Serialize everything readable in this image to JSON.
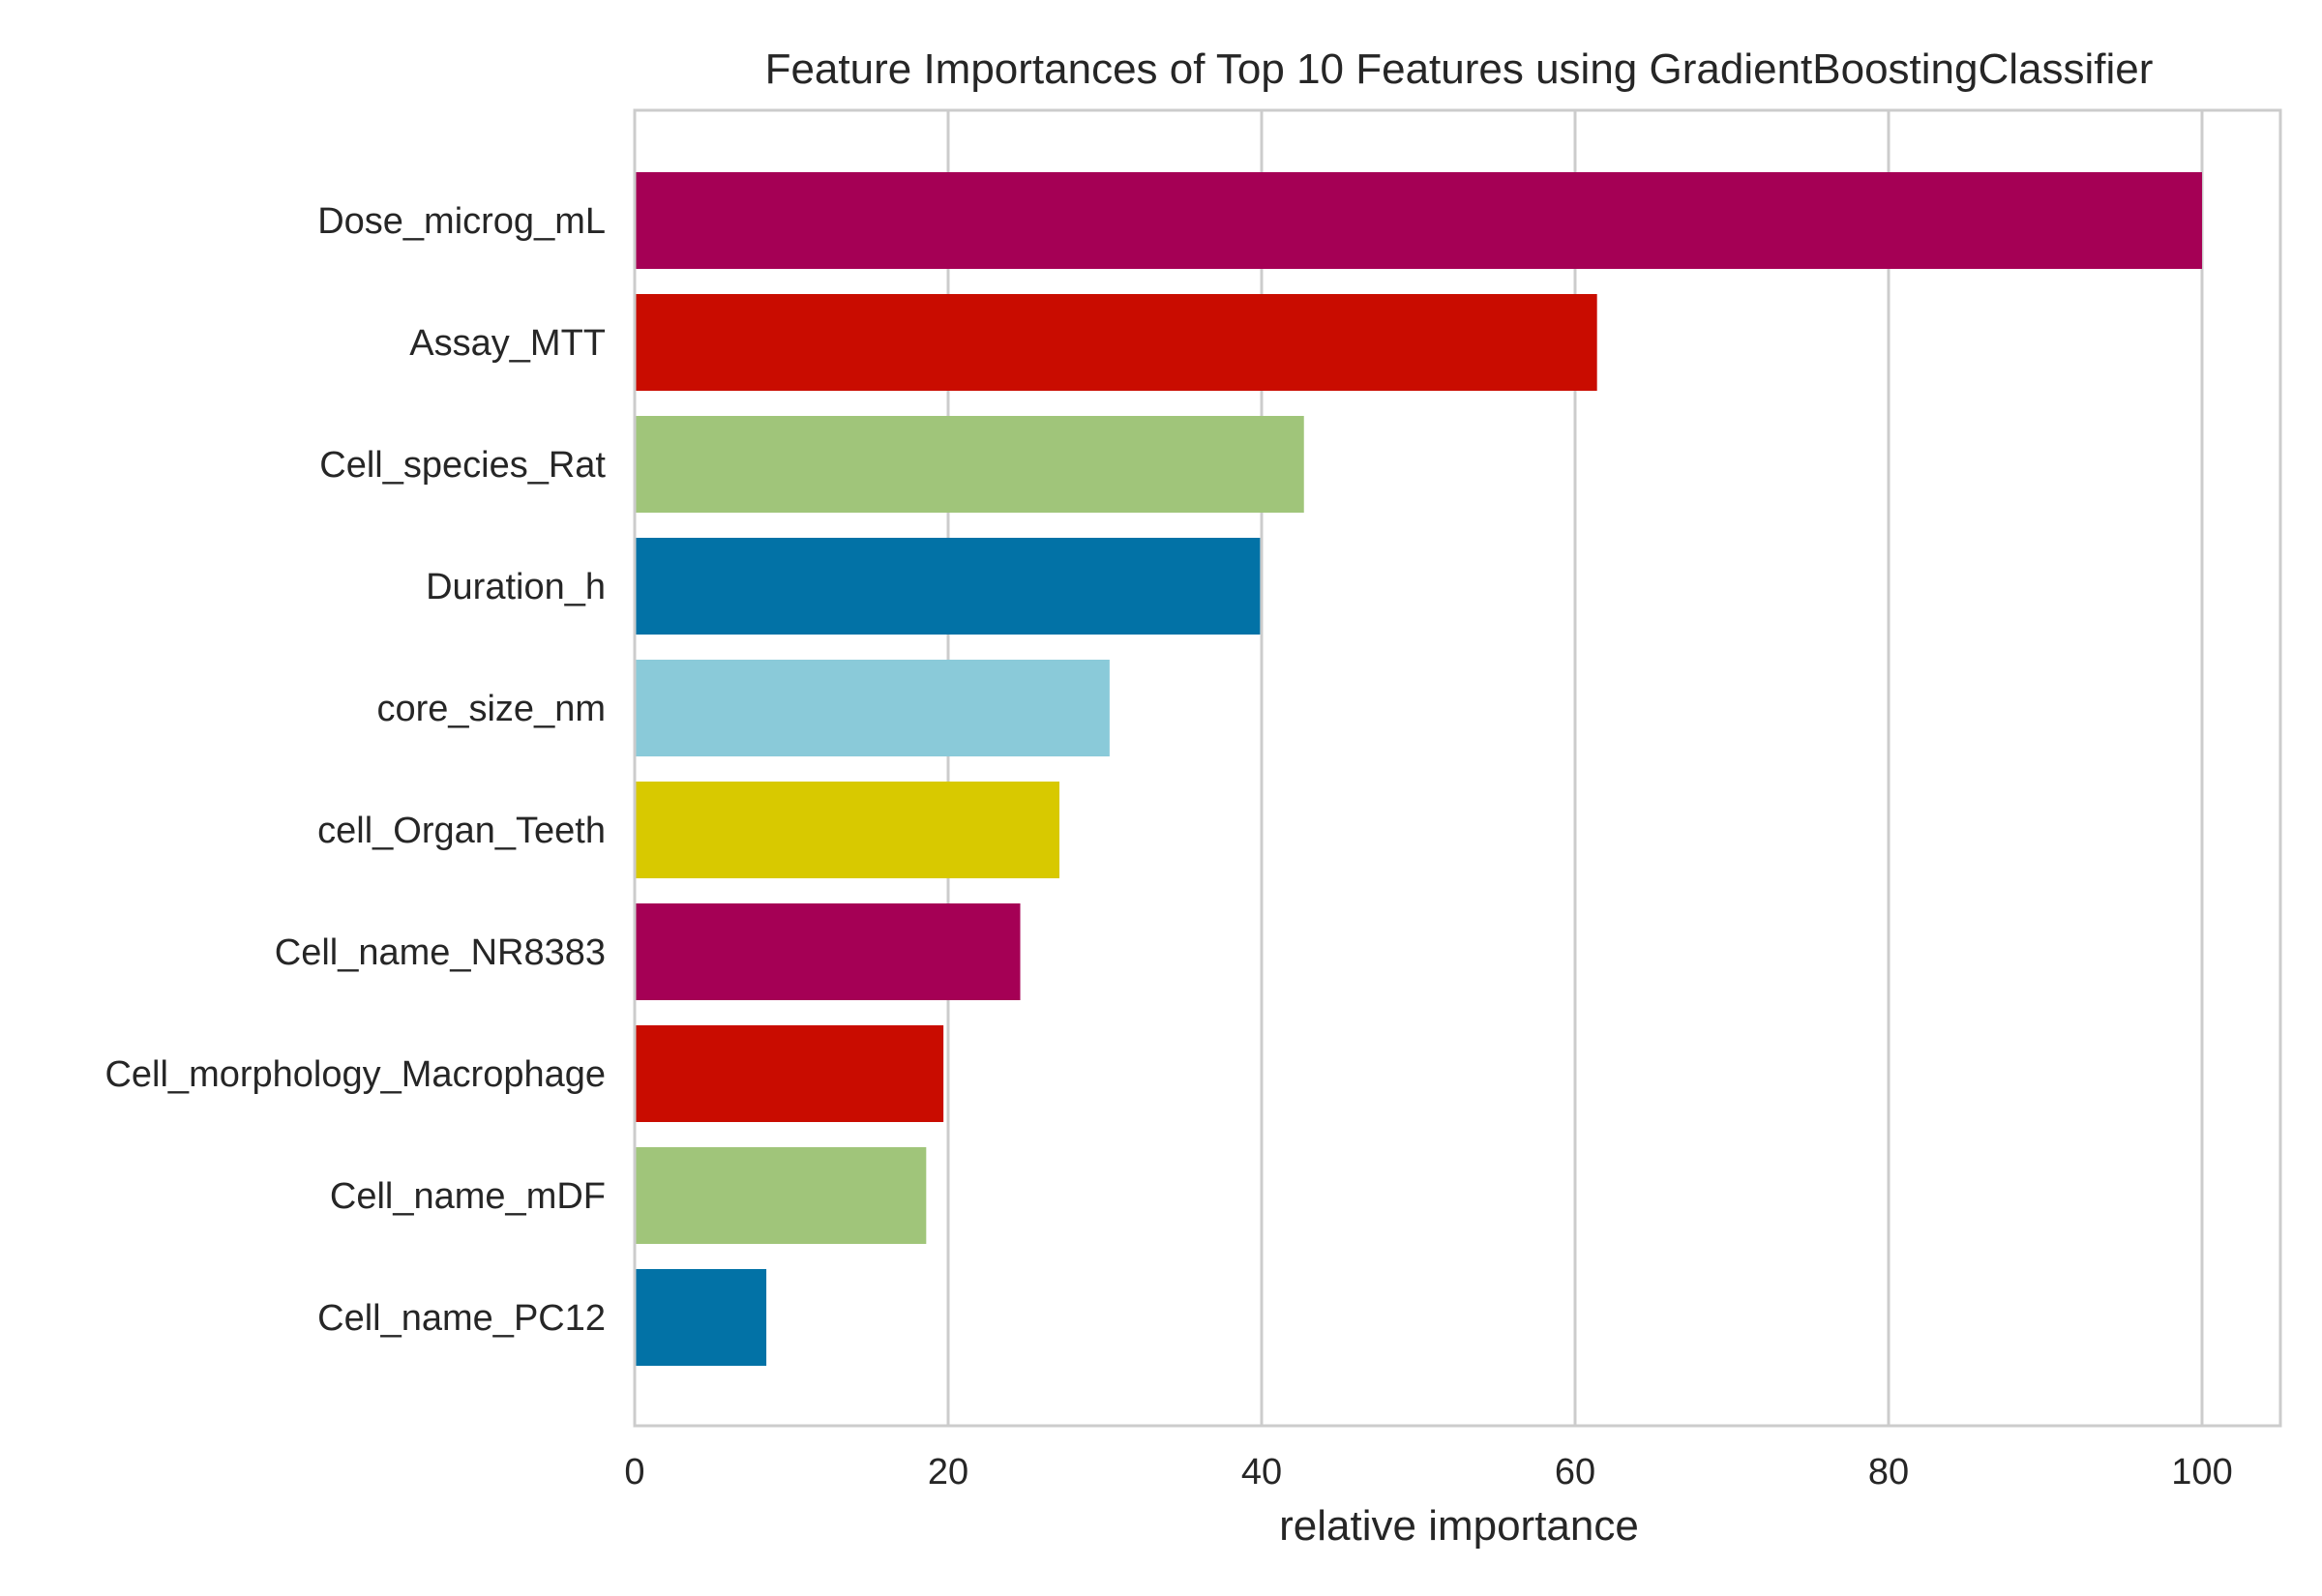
{
  "chart_data": {
    "type": "bar",
    "orientation": "horizontal",
    "title": "Feature Importances of Top 10 Features using GradientBoostingClassifier",
    "xlabel": "relative importance",
    "ylabel": "",
    "xlim": [
      0,
      105
    ],
    "xticks": [
      0,
      20,
      40,
      60,
      80,
      100
    ],
    "grid": true,
    "categories": [
      "Dose_microg_mL",
      "Assay_MTT",
      "Cell_species_Rat",
      "Duration_h",
      "core_size_nm",
      "cell_Organ_Teeth",
      "Cell_name_NR8383",
      "Cell_morphology_Macrophage",
      "Cell_name_mDF",
      "Cell_name_PC12"
    ],
    "values": [
      100,
      61.4,
      42.7,
      39.9,
      30.3,
      27.1,
      24.6,
      19.7,
      18.6,
      8.4
    ],
    "colors": [
      "#a50055",
      "#c90c00",
      "#a0c57a",
      "#0272a6",
      "#8acad9",
      "#d8c900",
      "#a50055",
      "#c90c00",
      "#a0c57a",
      "#0272a6"
    ],
    "axis_color": "#cccccc",
    "text_color": "#262626"
  }
}
